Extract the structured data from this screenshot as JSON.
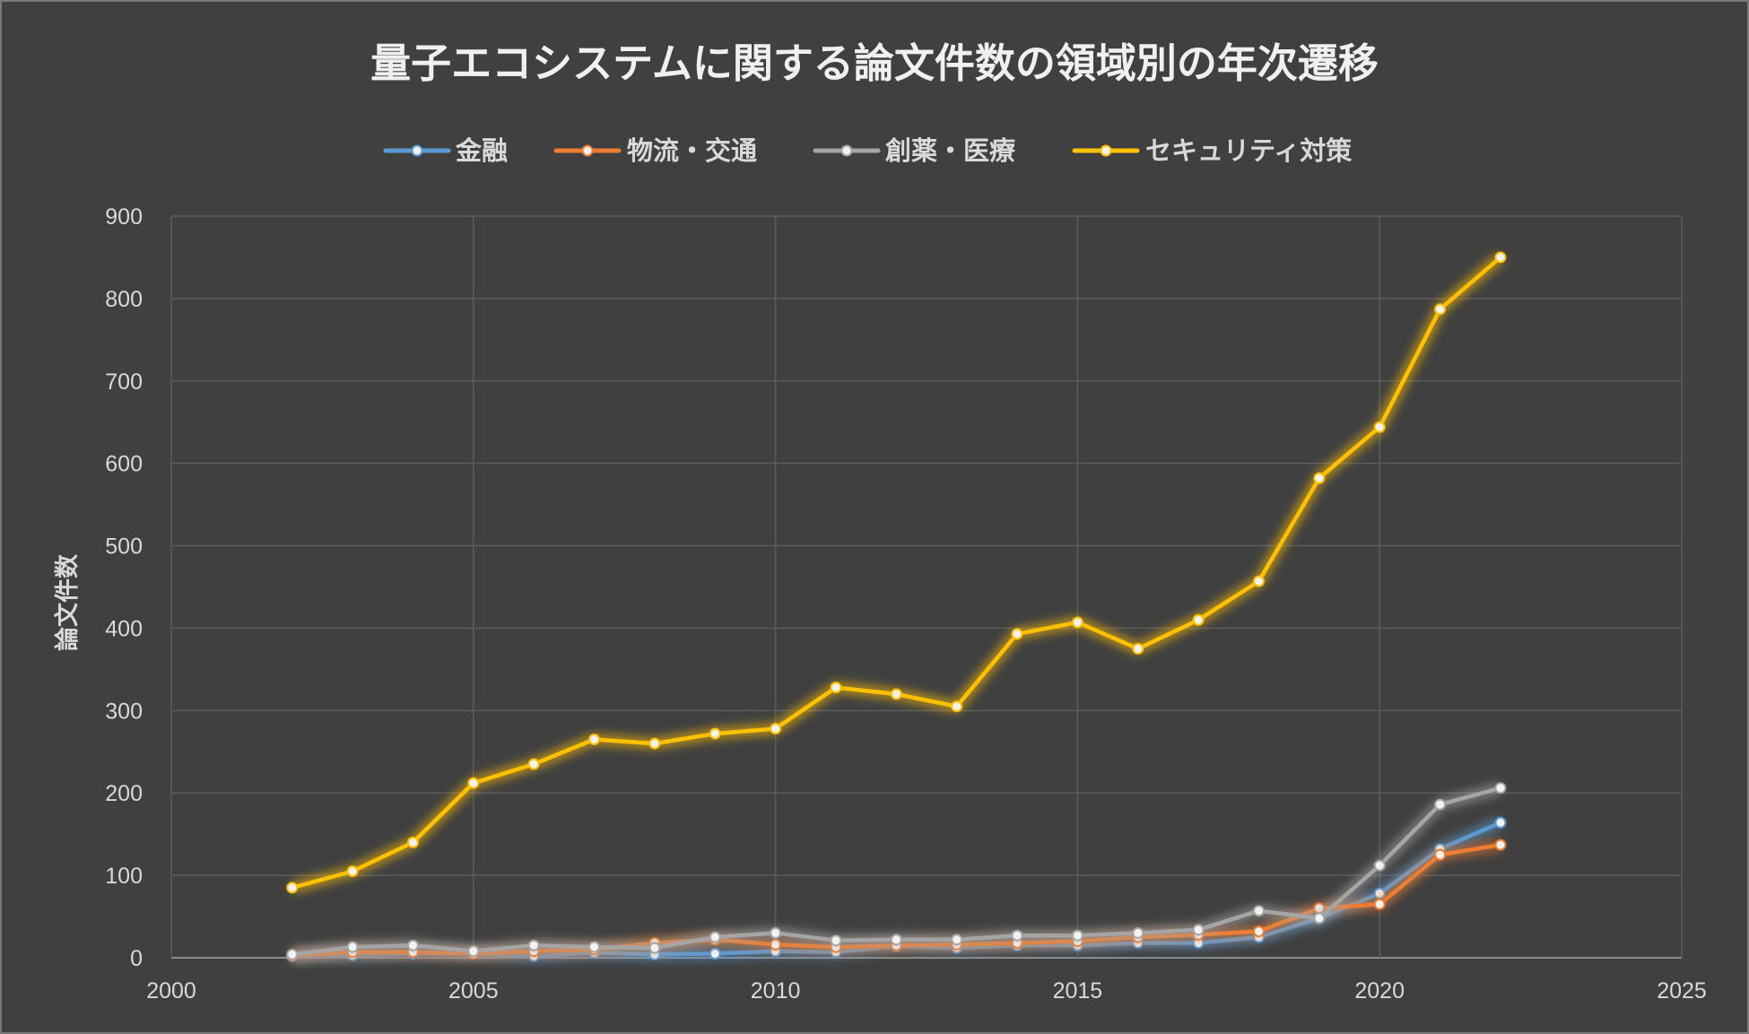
{
  "chart_data": {
    "type": "scatter",
    "title": "量子エコシステムに関する論文件数の領域別の年次遷移",
    "xlabel": "",
    "ylabel": "論文件数",
    "xlim": [
      2000,
      2025
    ],
    "ylim": [
      0,
      900
    ],
    "x_ticks": [
      "2000",
      "2005",
      "2010",
      "2015",
      "2020",
      "2025"
    ],
    "y_ticks": [
      "0",
      "100",
      "200",
      "300",
      "400",
      "500",
      "600",
      "700",
      "800",
      "900"
    ],
    "grid": true,
    "legend_position": "top",
    "x": [
      2002,
      2003,
      2004,
      2005,
      2006,
      2007,
      2008,
      2009,
      2010,
      2011,
      2012,
      2013,
      2014,
      2015,
      2016,
      2017,
      2018,
      2019,
      2020,
      2021,
      2022
    ],
    "series": [
      {
        "name": "金融",
        "color": "#5b9bd5",
        "values": [
          2,
          3,
          5,
          5,
          2,
          6,
          4,
          5,
          8,
          7,
          14,
          12,
          15,
          15,
          18,
          18,
          25,
          48,
          78,
          132,
          164
        ]
      },
      {
        "name": "物流・交通",
        "color": "#ed7d31",
        "values": [
          3,
          7,
          7,
          5,
          8,
          10,
          18,
          22,
          16,
          13,
          15,
          16,
          18,
          20,
          25,
          28,
          32,
          60,
          65,
          125,
          137
        ]
      },
      {
        "name": "創薬・医療",
        "color": "#a5a5a5",
        "values": [
          4,
          13,
          15,
          8,
          15,
          13,
          12,
          25,
          30,
          21,
          22,
          22,
          27,
          27,
          30,
          34,
          57,
          48,
          112,
          186,
          206
        ]
      },
      {
        "name": "セキュリティ対策",
        "color": "#ffc000",
        "values": [
          85,
          105,
          140,
          212,
          235,
          265,
          260,
          272,
          278,
          328,
          320,
          305,
          393,
          407,
          375,
          410,
          457,
          582,
          644,
          787,
          850
        ]
      }
    ]
  }
}
